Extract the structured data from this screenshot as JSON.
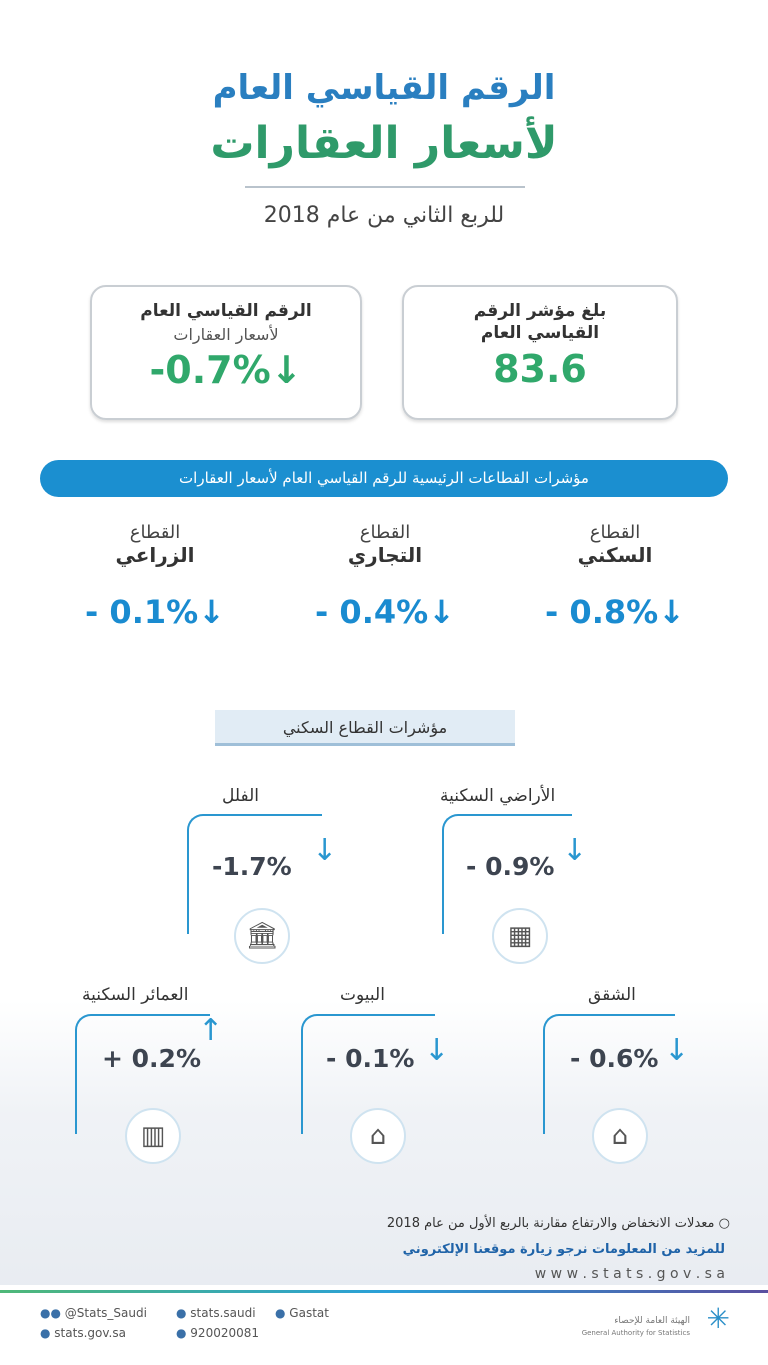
{
  "header": {
    "title_line1": "الرقم القياسي العام",
    "title_line2": "لأسعار العقارات",
    "subtitle": "للربع الثاني من عام 2018"
  },
  "summary": {
    "index_box": {
      "line1": "بلغ مؤشر الرقم",
      "line2": "القياسي العام",
      "value": "83.6"
    },
    "change_box": {
      "line1": "الرقم القياسي العام",
      "line2": "لأسعار العقارات",
      "value": "-0.7%↓"
    }
  },
  "banner": "مؤشرات القطاعات الرئيسية للرقم القياسي العام لأسعار العقارات",
  "sectors": [
    {
      "line1": "القطاع",
      "line2": "السكني",
      "value": "- 0.8%↓"
    },
    {
      "line1": "القطاع",
      "line2": "التجاري",
      "value": "- 0.4%↓"
    },
    {
      "line1": "القطاع",
      "line2": "الزراعي",
      "value": "- 0.1%↓"
    }
  ],
  "residential_header": "مؤشرات القطاع السكني",
  "residential": [
    {
      "label": "الأراضي السكنية",
      "value": "- 0.9%",
      "arrow": "↓",
      "icon": "land-plan-icon"
    },
    {
      "label": "الفلل",
      "value": "-1.7%",
      "arrow": "↓",
      "icon": "villa-icon"
    },
    {
      "label": "الشقق",
      "value": "- 0.6%",
      "arrow": "↓",
      "icon": "apartment-icon"
    },
    {
      "label": "البيوت",
      "value": "- 0.1%",
      "arrow": "↓",
      "icon": "house-icon"
    },
    {
      "label": "العمائر السكنية",
      "value": "+ 0.2%",
      "arrow": "↑",
      "icon": "building-icon"
    }
  ],
  "footer": {
    "note": "معدلات الانخفاض والارتفاع مقارنة بالربع الأول من عام 2018",
    "more_info": "للمزيد من المعلومات نرجو زيارة موقعنا الإلكتروني",
    "website": "w w w . s t a t s . g o v . s a",
    "twitter": "@Stats_Saudi",
    "facebook": "stats.saudi",
    "linkedin": "Gastat",
    "web": "stats.gov.sa",
    "phone": "920020081",
    "org_ar": "الهيئة العامة للإحصاء",
    "org_en": "General Authority for Statistics"
  },
  "colors": {
    "blue": "#1b8fd0",
    "green": "#30a86b",
    "text": "#3d4450"
  }
}
